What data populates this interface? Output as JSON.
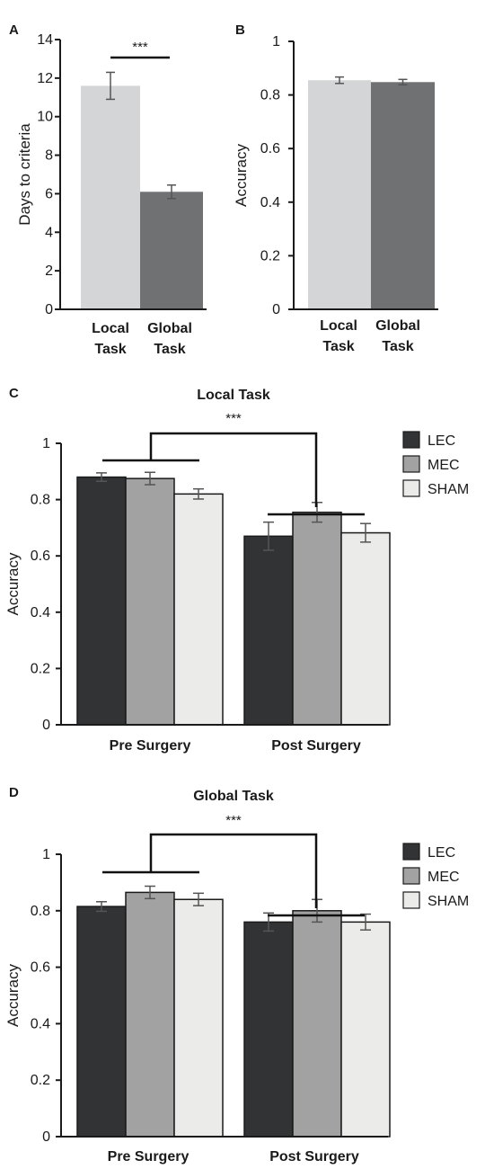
{
  "chart_data": [
    {
      "panel": "A",
      "type": "bar",
      "categories": [
        "Local Task",
        "Global Task"
      ],
      "category_lines": [
        [
          "Local",
          "Task"
        ],
        [
          "Global",
          "Task"
        ]
      ],
      "values": [
        11.6,
        6.1
      ],
      "errors": [
        0.7,
        0.35
      ],
      "bar_colors": [
        "#d3d5d6",
        "#6f7173"
      ],
      "ylabel": "Days to criteria",
      "ylim": [
        0,
        14
      ],
      "yticks": [
        0,
        2,
        4,
        6,
        8,
        10,
        12,
        14
      ],
      "significance": {
        "text": "***",
        "between": [
          0,
          1
        ]
      }
    },
    {
      "panel": "B",
      "type": "bar",
      "categories": [
        "Local Task",
        "Global Task"
      ],
      "category_lines": [
        [
          "Local",
          "Task"
        ],
        [
          "Global",
          "Task"
        ]
      ],
      "values": [
        0.855,
        0.848
      ],
      "errors": [
        0.012,
        0.01
      ],
      "bar_colors": [
        "#d3d5d6",
        "#6f7173"
      ],
      "ylabel": "Accuracy",
      "ylim": [
        0,
        1
      ],
      "yticks": [
        "0",
        "0.2",
        "0.4",
        "0.6",
        "0.8",
        "1"
      ]
    },
    {
      "panel": "C",
      "type": "bar",
      "title": "Local Task",
      "categories": [
        "Pre Surgery",
        "Post Surgery"
      ],
      "series": [
        {
          "name": "LEC",
          "values": [
            0.88,
            0.67
          ],
          "errors": [
            0.015,
            0.05
          ]
        },
        {
          "name": "MEC",
          "values": [
            0.875,
            0.755
          ],
          "errors": [
            0.022,
            0.035
          ]
        },
        {
          "name": "SHAM",
          "values": [
            0.82,
            0.682
          ],
          "errors": [
            0.018,
            0.033
          ]
        }
      ],
      "ylabel": "Accuracy",
      "ylim": [
        0,
        1
      ],
      "yticks": [
        "0",
        "0.2",
        "0.4",
        "0.6",
        "0.8",
        "1"
      ],
      "legend": "top-right",
      "significance": {
        "text": "***",
        "between": [
          0,
          1
        ]
      }
    },
    {
      "panel": "D",
      "type": "bar",
      "title": "Global Task",
      "categories": [
        "Pre Surgery",
        "Post Surgery"
      ],
      "series": [
        {
          "name": "LEC",
          "values": [
            0.815,
            0.76
          ],
          "errors": [
            0.017,
            0.032
          ]
        },
        {
          "name": "MEC",
          "values": [
            0.865,
            0.8
          ],
          "errors": [
            0.022,
            0.04
          ]
        },
        {
          "name": "SHAM",
          "values": [
            0.84,
            0.76
          ],
          "errors": [
            0.022,
            0.028
          ]
        }
      ],
      "ylabel": "Accuracy",
      "ylim": [
        0,
        1
      ],
      "yticks": [
        "0",
        "0.2",
        "0.4",
        "0.6",
        "0.8",
        "1"
      ],
      "legend": "top-right",
      "significance": {
        "text": "***",
        "between": [
          0,
          1
        ]
      }
    }
  ],
  "series_colors": {
    "LEC": "#323335",
    "MEC": "#a3a2a3",
    "SHAM": "#ebebea"
  },
  "grouped_bar_border": "#1a1a1a"
}
